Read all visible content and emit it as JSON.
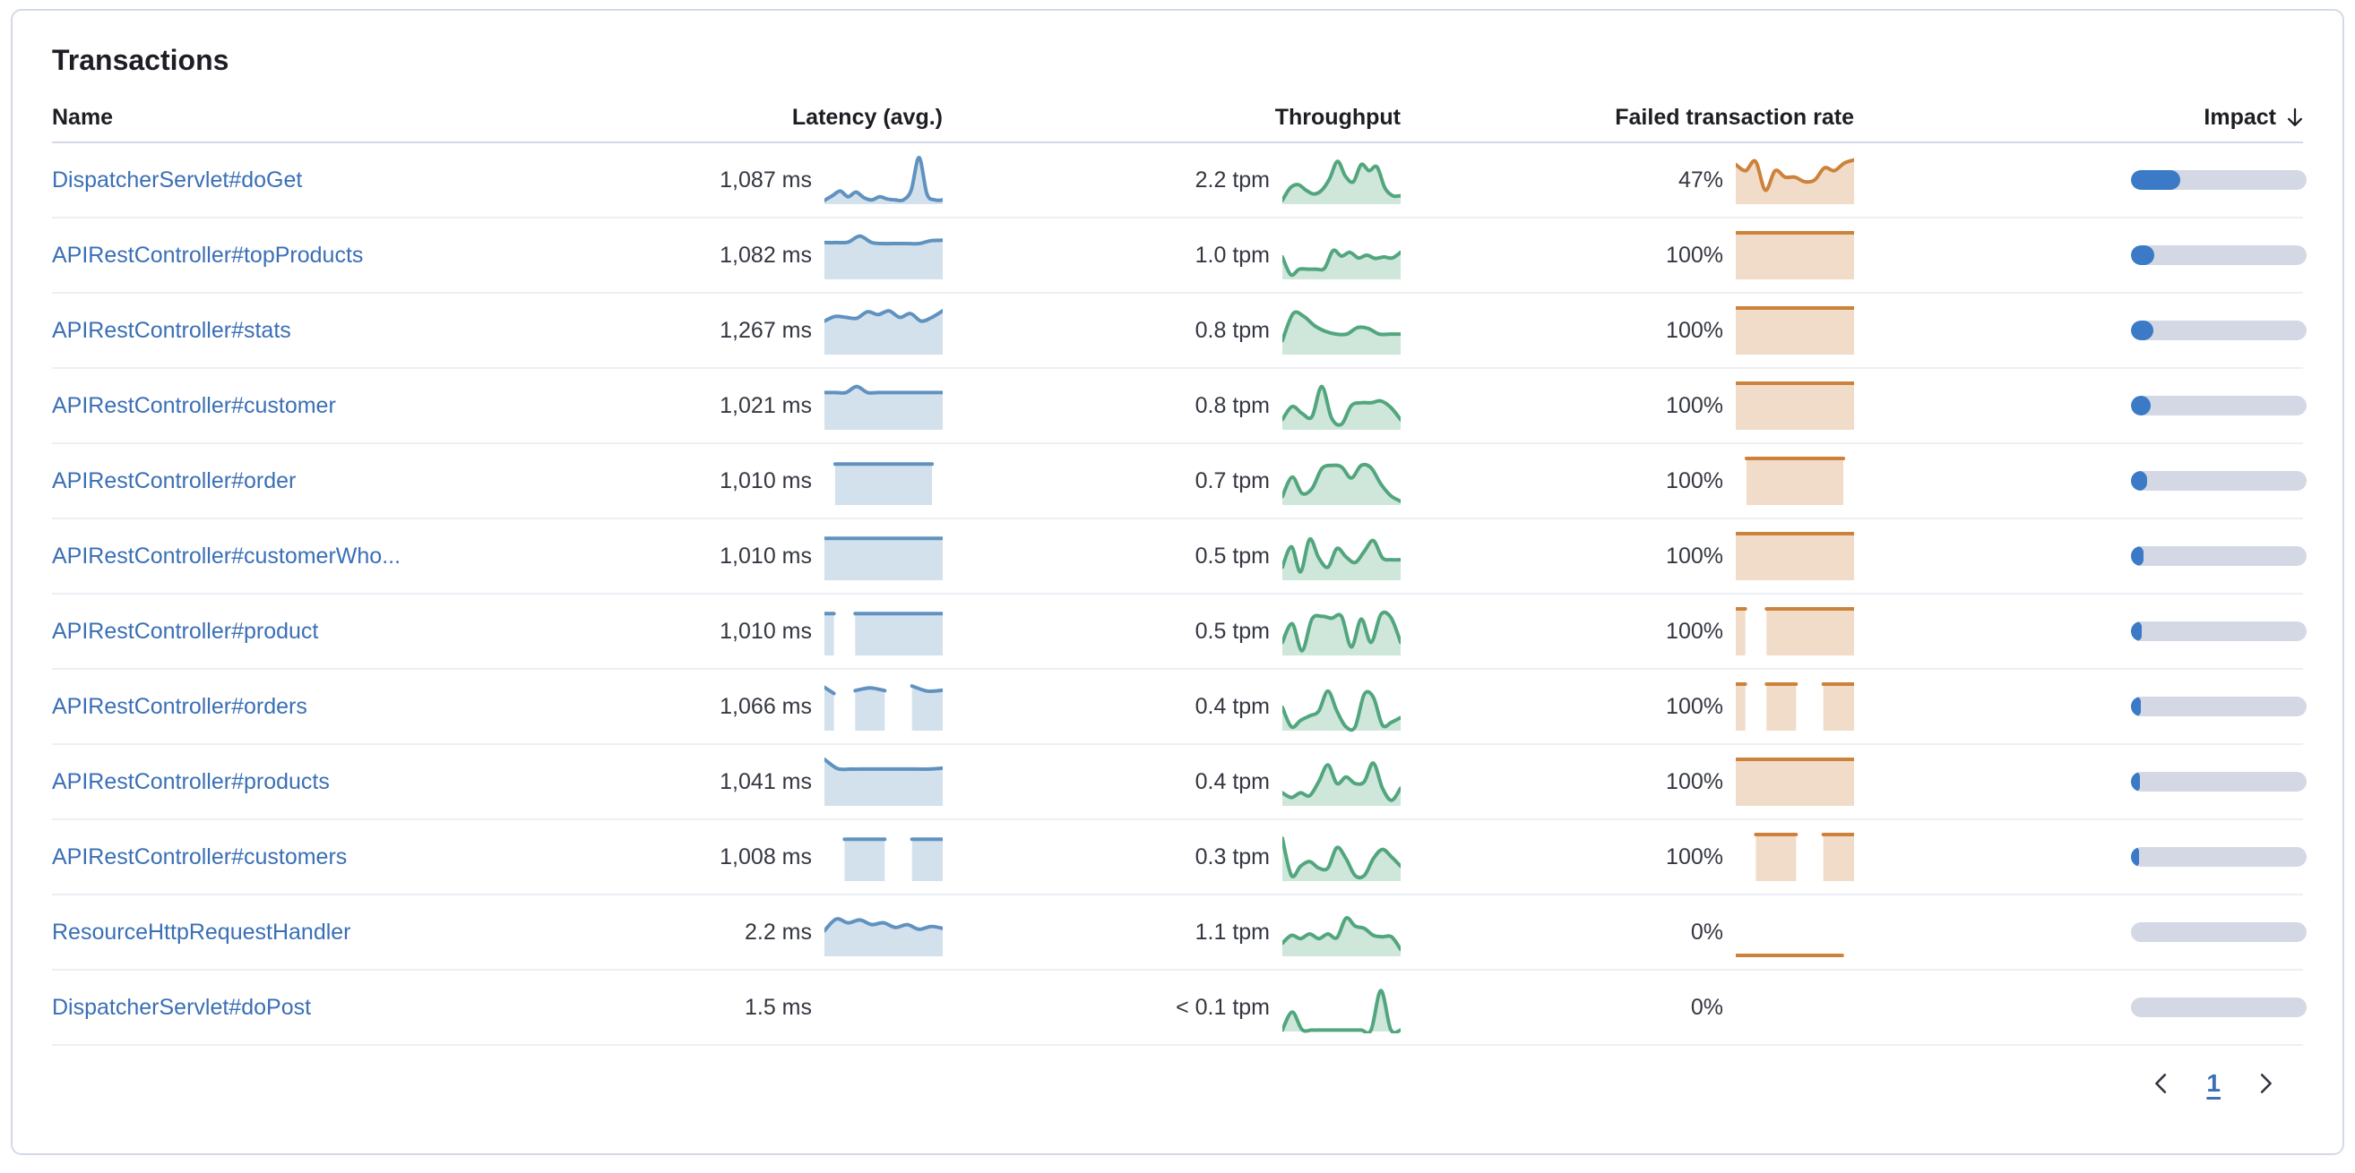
{
  "panel": {
    "title": "Transactions"
  },
  "table": {
    "columns": [
      {
        "label": "Name",
        "align": "left"
      },
      {
        "label": "Latency (avg.)",
        "align": "right"
      },
      {
        "label": "Throughput",
        "align": "right"
      },
      {
        "label": "Failed transaction rate",
        "align": "right"
      },
      {
        "label": "Impact",
        "align": "right",
        "sorted": "desc",
        "sort_icon": "arrow-down-icon"
      }
    ],
    "rows": [
      {
        "name": "DispatcherServlet#doGet",
        "latency": {
          "value": "1,087 ms",
          "spark": [
            {
              "from": 0,
              "to": 1,
              "values": [
                0.08,
                0.18,
                0.28,
                0.16,
                0.26,
                0.14,
                0.09,
                0.16,
                0.11,
                0.09,
                0.09,
                0.3,
                1.0,
                0.22,
                0.09,
                0.09
              ]
            }
          ]
        },
        "throughput": {
          "value": "2.2 tpm",
          "spark": [
            {
              "from": 0,
              "to": 1,
              "values": [
                0.08,
                0.35,
                0.42,
                0.3,
                0.22,
                0.3,
                0.55,
                0.92,
                0.6,
                0.48,
                0.85,
                0.72,
                0.8,
                0.35,
                0.18,
                0.18
              ]
            }
          ]
        },
        "failed": {
          "value": "47%",
          "spark": [
            {
              "from": 0,
              "to": 1,
              "values": [
                0.85,
                0.72,
                0.92,
                0.3,
                0.72,
                0.58,
                0.58,
                0.48,
                0.52,
                0.78,
                0.72,
                0.88,
                0.95
              ]
            }
          ]
        },
        "impact_pct": 28
      },
      {
        "name": "APIRestController#topProducts",
        "latency": {
          "value": "1,082 ms",
          "spark": [
            {
              "from": 0,
              "to": 1,
              "values": [
                0.79,
                0.79,
                0.8,
                0.93,
                0.79,
                0.77,
                0.77,
                0.77,
                0.77,
                0.83,
                0.84
              ]
            }
          ]
        },
        "throughput": {
          "value": "1.0 tpm",
          "spark": [
            {
              "from": 0,
              "to": 1,
              "values": [
                0.48,
                0.1,
                0.22,
                0.22,
                0.22,
                0.24,
                0.62,
                0.5,
                0.58,
                0.46,
                0.52,
                0.45,
                0.48,
                0.46,
                0.58
              ]
            }
          ]
        },
        "failed": {
          "value": "100%",
          "spark": [
            {
              "from": 0,
              "to": 1,
              "values": [
                1,
                1
              ]
            }
          ]
        },
        "impact_pct": 13.5
      },
      {
        "name": "APIRestController#stats",
        "latency": {
          "value": "1,267 ms",
          "spark": [
            {
              "from": 0,
              "to": 1,
              "values": [
                0.72,
                0.82,
                0.8,
                0.78,
                0.92,
                0.86,
                0.94,
                0.8,
                0.88,
                0.72,
                0.8,
                0.94
              ]
            }
          ]
        },
        "throughput": {
          "value": "0.8 tpm",
          "spark": [
            {
              "from": 0,
              "to": 1,
              "values": [
                0.3,
                0.88,
                0.82,
                0.62,
                0.5,
                0.44,
                0.44,
                0.58,
                0.56,
                0.44,
                0.44,
                0.44
              ]
            }
          ]
        },
        "failed": {
          "value": "100%",
          "spark": [
            {
              "from": 0,
              "to": 1,
              "values": [
                1,
                1
              ]
            }
          ]
        },
        "impact_pct": 13
      },
      {
        "name": "APIRestController#customer",
        "latency": {
          "value": "1,021 ms",
          "spark": [
            {
              "from": 0,
              "to": 1,
              "values": [
                0.8,
                0.8,
                0.8,
                0.93,
                0.8,
                0.8,
                0.8,
                0.8,
                0.8,
                0.8,
                0.8,
                0.8
              ]
            }
          ]
        },
        "throughput": {
          "value": "0.8 tpm",
          "spark": [
            {
              "from": 0,
              "to": 1,
              "values": [
                0.22,
                0.5,
                0.35,
                0.28,
                0.93,
                0.25,
                0.12,
                0.52,
                0.58,
                0.58,
                0.62,
                0.48,
                0.22
              ]
            }
          ]
        },
        "failed": {
          "value": "100%",
          "spark": [
            {
              "from": 0,
              "to": 1,
              "values": [
                1,
                1
              ]
            }
          ]
        },
        "impact_pct": 11
      },
      {
        "name": "APIRestController#order",
        "latency": {
          "value": "1,010 ms",
          "spark": [
            {
              "from": 0.09,
              "to": 0.91,
              "values": [
                0.88,
                0.88
              ]
            }
          ]
        },
        "throughput": {
          "value": "0.7 tpm",
          "spark": [
            {
              "from": 0,
              "to": 1,
              "values": [
                0.18,
                0.6,
                0.25,
                0.35,
                0.78,
                0.85,
                0.82,
                0.58,
                0.85,
                0.8,
                0.45,
                0.2,
                0.08
              ]
            }
          ]
        },
        "failed": {
          "value": "100%",
          "spark": [
            {
              "from": 0.09,
              "to": 0.91,
              "values": [
                1,
                1
              ]
            }
          ]
        },
        "impact_pct": 9.3
      },
      {
        "name": "APIRestController#customerWho...",
        "latency": {
          "value": "1,010 ms",
          "spark": [
            {
              "from": 0,
              "to": 1,
              "values": [
                0.9,
                0.9
              ]
            }
          ]
        },
        "throughput": {
          "value": "0.5 tpm",
          "spark": [
            {
              "from": 0,
              "to": 1,
              "values": [
                0.28,
                0.72,
                0.18,
                0.88,
                0.48,
                0.28,
                0.68,
                0.5,
                0.38,
                0.62,
                0.85,
                0.48,
                0.44,
                0.44
              ]
            }
          ]
        },
        "failed": {
          "value": "100%",
          "spark": [
            {
              "from": 0,
              "to": 1,
              "values": [
                1,
                1
              ]
            }
          ]
        },
        "impact_pct": 7.2
      },
      {
        "name": "APIRestController#product",
        "latency": {
          "value": "1,010 ms",
          "spark": [
            {
              "from": 0,
              "to": 0.08,
              "values": [
                0.9,
                0.9
              ]
            },
            {
              "from": 0.26,
              "to": 1,
              "values": [
                0.9,
                0.9
              ]
            }
          ]
        },
        "throughput": {
          "value": "0.5 tpm",
          "spark": [
            {
              "from": 0,
              "to": 1,
              "values": [
                0.28,
                0.68,
                0.1,
                0.78,
                0.84,
                0.8,
                0.84,
                0.18,
                0.78,
                0.28,
                0.88,
                0.82,
                0.28
              ]
            }
          ]
        },
        "failed": {
          "value": "100%",
          "spark": [
            {
              "from": 0,
              "to": 0.08,
              "values": [
                1,
                1
              ]
            },
            {
              "from": 0.26,
              "to": 1,
              "values": [
                1,
                1
              ]
            }
          ]
        },
        "impact_pct": 6.3
      },
      {
        "name": "APIRestController#orders",
        "latency": {
          "value": "1,066 ms",
          "spark": [
            {
              "from": 0,
              "to": 0.08,
              "values": [
                0.93,
                0.8
              ]
            },
            {
              "from": 0.26,
              "to": 0.51,
              "values": [
                0.86,
                0.92,
                0.86
              ]
            },
            {
              "from": 0.74,
              "to": 1,
              "values": [
                0.96,
                0.85,
                0.87
              ]
            }
          ]
        },
        "throughput": {
          "value": "0.4 tpm",
          "spark": [
            {
              "from": 0,
              "to": 1,
              "values": [
                0.5,
                0.08,
                0.22,
                0.32,
                0.42,
                0.85,
                0.42,
                0.08,
                0.08,
                0.78,
                0.72,
                0.12,
                0.18,
                0.28
              ]
            }
          ]
        },
        "failed": {
          "value": "100%",
          "spark": [
            {
              "from": 0,
              "to": 0.08,
              "values": [
                1,
                1
              ]
            },
            {
              "from": 0.26,
              "to": 0.51,
              "values": [
                1,
                1
              ]
            },
            {
              "from": 0.74,
              "to": 1,
              "values": [
                1,
                1
              ]
            }
          ]
        },
        "impact_pct": 5.5
      },
      {
        "name": "APIRestController#products",
        "latency": {
          "value": "1,041 ms",
          "spark": [
            {
              "from": 0,
              "to": 1,
              "values": [
                1.0,
                0.8,
                0.79,
                0.79,
                0.79,
                0.79,
                0.79,
                0.79,
                0.79,
                0.81
              ]
            }
          ]
        },
        "throughput": {
          "value": "0.4 tpm",
          "spark": [
            {
              "from": 0,
              "to": 1,
              "values": [
                0.28,
                0.18,
                0.28,
                0.22,
                0.52,
                0.88,
                0.48,
                0.62,
                0.48,
                0.52,
                0.92,
                0.38,
                0.12,
                0.38
              ]
            }
          ]
        },
        "failed": {
          "value": "100%",
          "spark": [
            {
              "from": 0,
              "to": 1,
              "values": [
                1,
                1
              ]
            }
          ]
        },
        "impact_pct": 5
      },
      {
        "name": "APIRestController#customers",
        "latency": {
          "value": "1,008 ms",
          "spark": [
            {
              "from": 0.17,
              "to": 0.51,
              "values": [
                0.9,
                0.9
              ]
            },
            {
              "from": 0.74,
              "to": 1,
              "values": [
                0.9,
                0.9
              ]
            }
          ]
        },
        "throughput": {
          "value": "0.3 tpm",
          "spark": [
            {
              "from": 0,
              "to": 1,
              "values": [
                0.92,
                0.12,
                0.32,
                0.42,
                0.28,
                0.28,
                0.72,
                0.48,
                0.12,
                0.12,
                0.48,
                0.68,
                0.52,
                0.32
              ]
            }
          ]
        },
        "failed": {
          "value": "100%",
          "spark": [
            {
              "from": 0.17,
              "to": 0.51,
              "values": [
                1,
                1
              ]
            },
            {
              "from": 0.74,
              "to": 1,
              "values": [
                1,
                1
              ]
            }
          ]
        },
        "impact_pct": 4.6
      },
      {
        "name": "ResourceHttpRequestHandler",
        "latency": {
          "value": "2.2 ms",
          "spark": [
            {
              "from": 0,
              "to": 1,
              "values": [
                0.55,
                0.8,
                0.72,
                0.78,
                0.68,
                0.72,
                0.62,
                0.68,
                0.58,
                0.64,
                0.6
              ]
            }
          ]
        },
        "throughput": {
          "value": "1.1 tpm",
          "spark": [
            {
              "from": 0,
              "to": 1,
              "values": [
                0.28,
                0.45,
                0.38,
                0.48,
                0.38,
                0.48,
                0.4,
                0.82,
                0.65,
                0.6,
                0.45,
                0.42,
                0.42,
                0.15
              ]
            }
          ]
        },
        "failed": {
          "value": "0%",
          "spark": [
            {
              "from": 0,
              "to": 0.9,
              "values": [
                0.02,
                0.02
              ]
            }
          ]
        },
        "impact_pct": 0
      },
      {
        "name": "DispatcherServlet#doPost",
        "latency": {
          "value": "1.5 ms",
          "spark": []
        },
        "throughput": {
          "value": "< 0.1 tpm",
          "spark": [
            {
              "from": 0,
              "to": 1,
              "values": [
                0.03,
                0.42,
                0.04,
                0.03,
                0.03,
                0.03,
                0.03,
                0.03,
                0.03,
                0.03,
                0.88,
                0.04,
                0.03
              ]
            }
          ]
        },
        "failed": {
          "value": "0%",
          "spark": []
        },
        "impact_pct": 0
      }
    ]
  },
  "pagination": {
    "prev_icon": "chevron-left-icon",
    "page": "1",
    "next_icon": "chevron-right-icon"
  },
  "colors": {
    "link": "#3A6FB5",
    "text": "#343741",
    "heading": "#1D1E24",
    "latency_spark": "#6092C0",
    "throughput_spark": "#52A67E",
    "failed_spark": "#CD823C",
    "impact_fill": "#3B7AC6",
    "impact_track": "#D3D8E4",
    "panel_border": "#D3DAE6"
  }
}
